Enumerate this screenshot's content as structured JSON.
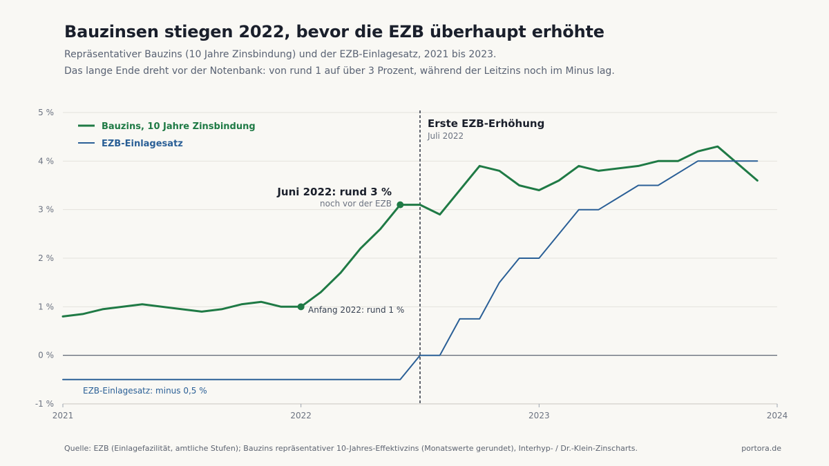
{
  "header": {
    "title": "Bauzinsen stiegen 2022, bevor die EZB überhaupt erhöhte",
    "subtitle_1": "Repräsentativer Bauzins (10 Jahre Zinsbindung) und der EZB-Einlagesatz, 2021 bis 2023.",
    "subtitle_2": "Das lange Ende dreht vor der Notenbank: von rund 1 auf über 3 Prozent, während der Leitzins noch im Minus lag."
  },
  "footer": {
    "source": "Quelle: EZB (Einlagefazilität, amtliche Stufen); Bauzins repräsentativer 10-Jahres-Effektivzins (Monatswerte gerundet), Interhyp- / Dr.-Klein-Zinscharts.",
    "brand": "portora.de"
  },
  "chart_data": {
    "type": "line",
    "x_range": [
      2021,
      2024
    ],
    "ylim": [
      -1,
      5
    ],
    "y_ticks": [
      -1,
      0,
      1,
      2,
      3,
      4,
      5
    ],
    "y_tick_labels": [
      "-1 %",
      "0 %",
      "1 %",
      "2 %",
      "3 %",
      "4 %",
      "5 %"
    ],
    "x_ticks": [
      2021,
      2022,
      2023,
      2024
    ],
    "x_tick_labels": [
      "2021",
      "2022",
      "2023",
      "2024"
    ],
    "grid": true,
    "legend_position": "top-left",
    "colors": {
      "bauzins": "#1f7a45",
      "ezb": "#2a5f96",
      "zero_line": "#4b5563",
      "grid": "#e4e2dc"
    },
    "series": [
      {
        "key": "bauzins",
        "name": "Bauzins, 10 Jahre Zinsbindung",
        "x": [
          2021.0,
          2021.0833,
          2021.1667,
          2021.3333,
          2021.5833,
          2021.6667,
          2021.75,
          2021.8333,
          2021.9167,
          2022.0,
          2022.0833,
          2022.1667,
          2022.25,
          2022.3333,
          2022.4167,
          2022.5,
          2022.5833,
          2022.75,
          2022.8333,
          2022.9167,
          2023.0,
          2023.0833,
          2023.1667,
          2023.25,
          2023.4167,
          2023.5,
          2023.5833,
          2023.6667,
          2023.75,
          2023.8333,
          2023.9167
        ],
        "values": [
          0.8,
          0.85,
          0.95,
          1.05,
          0.9,
          0.95,
          1.05,
          1.1,
          1.0,
          1.0,
          1.3,
          1.7,
          2.2,
          2.6,
          3.1,
          3.1,
          2.9,
          3.9,
          3.8,
          3.5,
          3.4,
          3.6,
          3.9,
          3.8,
          3.9,
          4.0,
          4.0,
          4.2,
          4.3,
          3.95,
          3.6
        ]
      },
      {
        "key": "ezb",
        "name": "EZB-Einlagesatz",
        "x": [
          2021.0,
          2022.4167,
          2022.5,
          2022.5833,
          2022.6667,
          2022.75,
          2022.8333,
          2022.9167,
          2023.0,
          2023.1667,
          2023.25,
          2023.4167,
          2023.5,
          2023.6667,
          2023.9167
        ],
        "values": [
          -0.5,
          -0.5,
          0.0,
          0.0,
          0.75,
          0.75,
          1.5,
          2.0,
          2.0,
          3.0,
          3.0,
          3.5,
          3.5,
          4.0,
          4.0
        ]
      }
    ],
    "annotations": {
      "event_x": 2022.5,
      "event_title": "Erste EZB-Erhöhung",
      "event_sub": "Juli 2022",
      "peak_x": 2022.4167,
      "peak_y": 3.1,
      "peak_title": "Juni 2022: rund 3 %",
      "peak_sub": "noch vor der EZB",
      "start_x": 2022.0,
      "start_y": 1.0,
      "start_label": "Anfang 2022: rund 1 %",
      "ezb_label": "EZB-Einlagesatz: minus 0,5 %"
    }
  }
}
